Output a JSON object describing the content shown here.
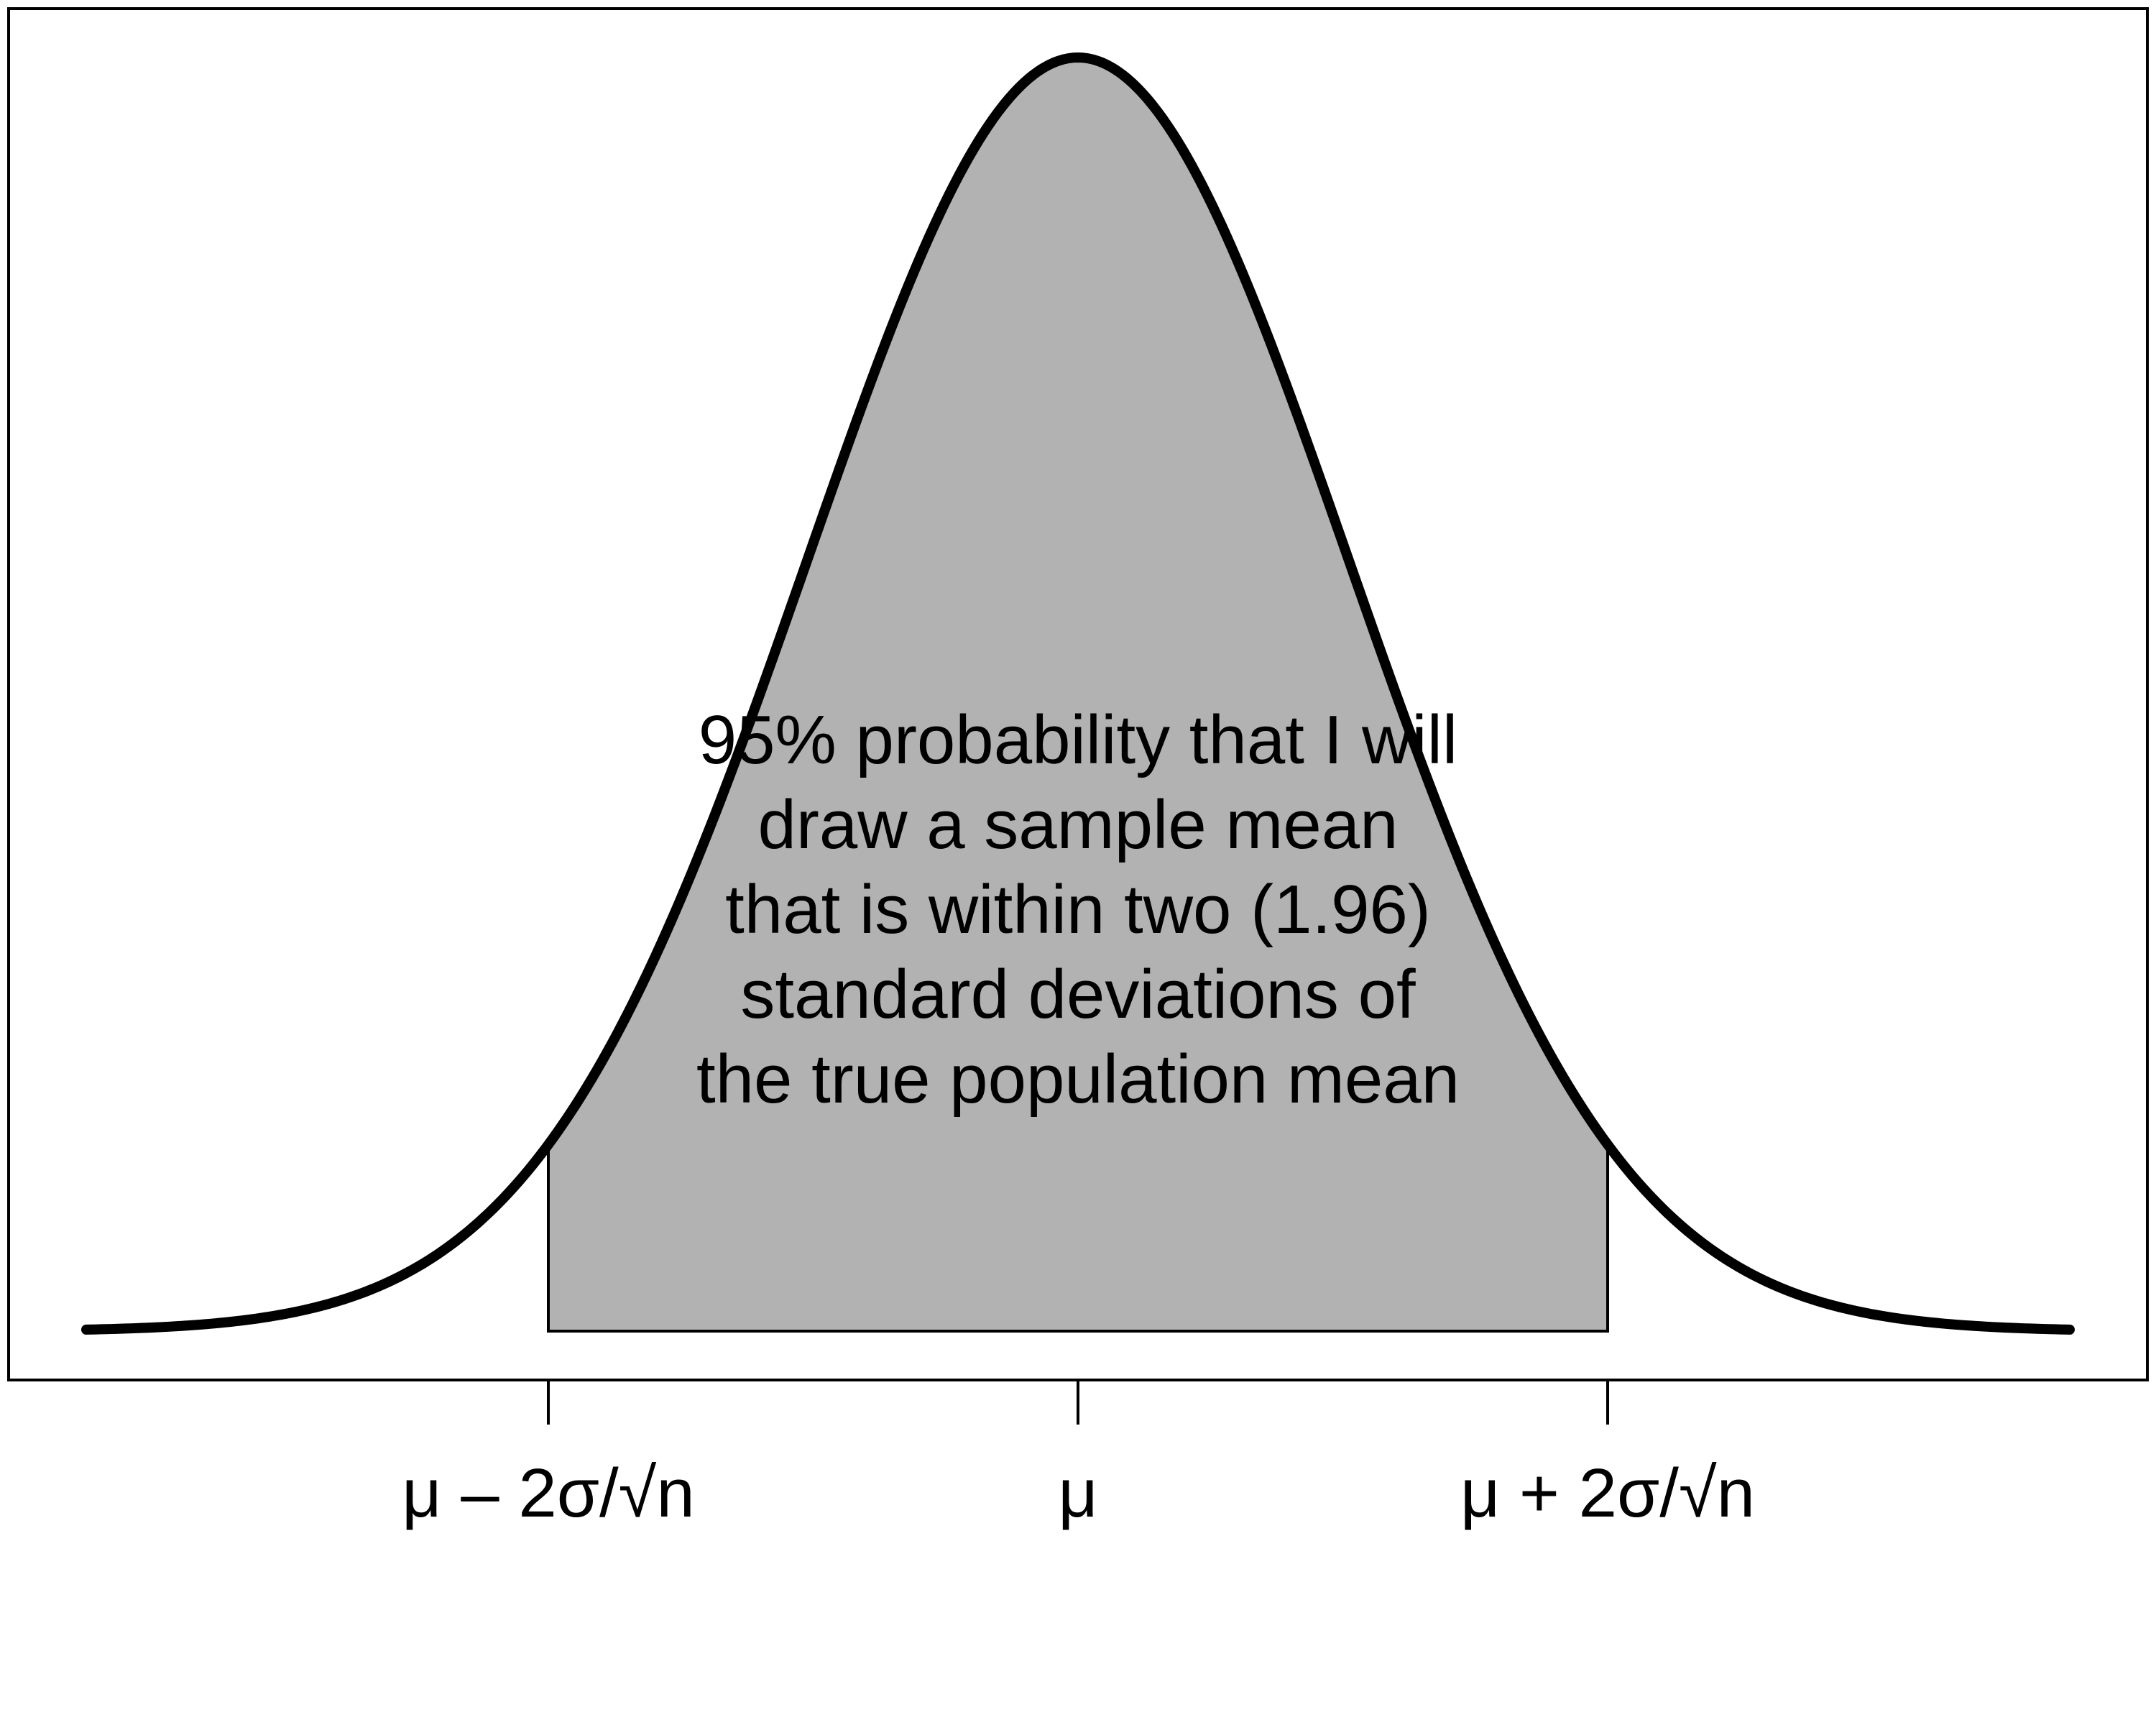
{
  "chart_data": {
    "type": "area",
    "title": "",
    "xlabel": "",
    "ylabel": "",
    "x_range": [
      -3.67,
      3.67
    ],
    "y_range": [
      0,
      0.4
    ],
    "distribution": "normal",
    "mean": 0,
    "sd": 1,
    "series": [
      {
        "kind": "density_curve",
        "x_from": -3.67,
        "x_to": 3.67,
        "color": "#000000"
      },
      {
        "kind": "shaded_region",
        "x_from": -1.96,
        "x_to": 1.96,
        "color": "#b2b2b2"
      }
    ],
    "ticks": [
      {
        "x": -1.96,
        "label": "μ – 2σ/√n"
      },
      {
        "x": 0,
        "label": "μ"
      },
      {
        "x": 1.96,
        "label": "μ + 2σ/√n"
      }
    ],
    "annotation": {
      "lines": [
        "95% probability that I will",
        "draw a sample mean",
        "that is within two (1.96)",
        "standard deviations of",
        "the true population mean"
      ]
    },
    "grid": false,
    "legend": "none"
  }
}
